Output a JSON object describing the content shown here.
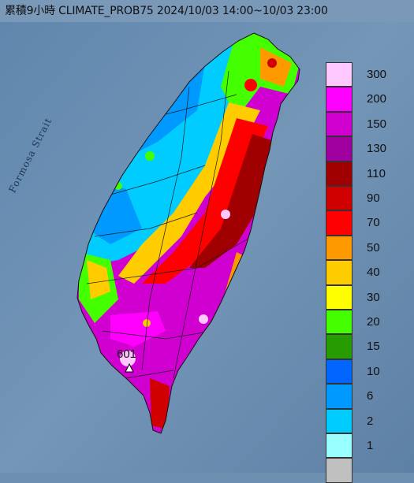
{
  "title": "累積9小時 CLIMATE_PROB75 2024/10/03 14:00~10/03 23:00",
  "strait_label": "Formosa Strait",
  "peak_label": "601",
  "legend": [
    {
      "value": "300",
      "color": "#ffc8ff"
    },
    {
      "value": "200",
      "color": "#ff00ff"
    },
    {
      "value": "150",
      "color": "#d000d0"
    },
    {
      "value": "130",
      "color": "#a000a0"
    },
    {
      "value": "110",
      "color": "#a00000"
    },
    {
      "value": "90",
      "color": "#d00000"
    },
    {
      "value": "70",
      "color": "#ff0000"
    },
    {
      "value": "50",
      "color": "#ff9900"
    },
    {
      "value": "40",
      "color": "#ffcc00"
    },
    {
      "value": "30",
      "color": "#ffff00"
    },
    {
      "value": "20",
      "color": "#44ff00"
    },
    {
      "value": "15",
      "color": "#269c00"
    },
    {
      "value": "10",
      "color": "#0066ff"
    },
    {
      "value": "6",
      "color": "#0099ff"
    },
    {
      "value": "2",
      "color": "#00ccff"
    },
    {
      "value": "1",
      "color": "#99ffff"
    },
    {
      "value": "",
      "color": "#c0c0c0"
    }
  ]
}
